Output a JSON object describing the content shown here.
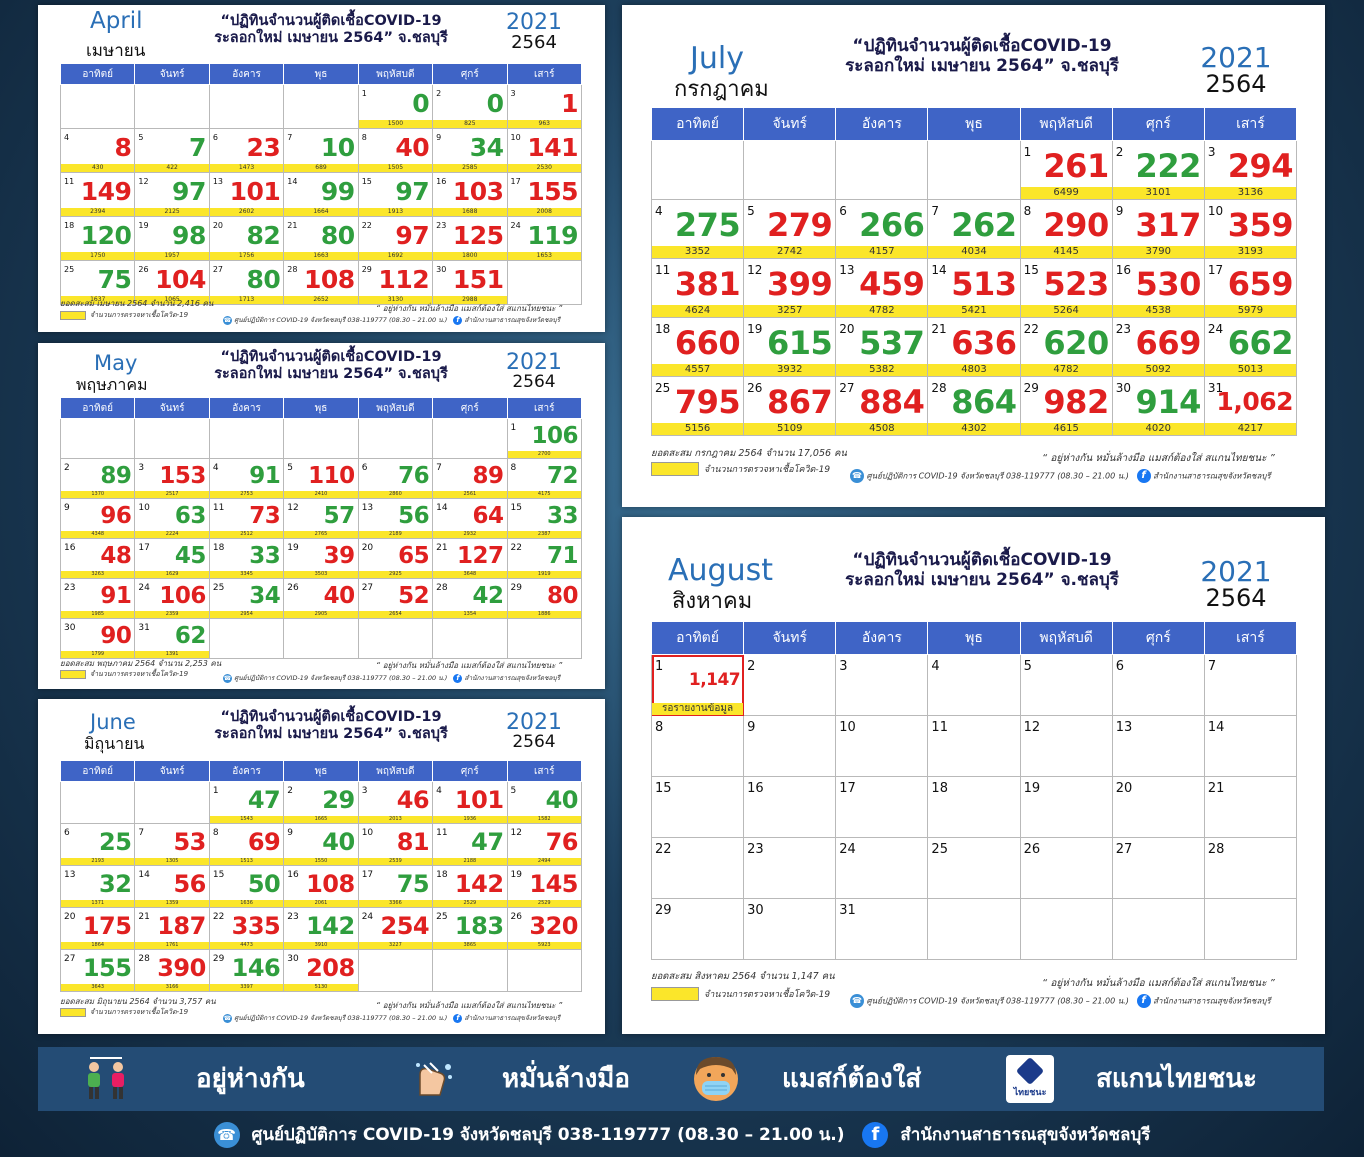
{
  "headings": {
    "title_line1": "“ปฏิทินจำนวนผู้ติดเชื้อCOVID-19",
    "title_line2": "ระลอกใหม่ เมษายน 2564” จ.ชลบุรี",
    "year_ad": "2021",
    "year_be": "2564"
  },
  "weekdays": [
    "อาทิตย์",
    "จันทร์",
    "อังคาร",
    "พุธ",
    "พฤหัสบดี",
    "ศุกร์",
    "เสาร์"
  ],
  "footer": {
    "slogan": "“ อยู่ห่างกัน หมั่นล้างมือ แมสก์ต้องใส่ สแกนไทยชนะ ”",
    "legend_label": "จำนวนการตรวจหาเชื้อโควิด-19",
    "center_label": "ศูนย์ปฏิบัติการ COVID-19 จังหวัดชลบุรี 038-119777 (08.30 – 21.00 น.)",
    "facebook_label": "สำนักงานสาธารณสุขจังหวัดชลบุรี"
  },
  "months": [
    {
      "id": "april",
      "en": "April",
      "th": "เมษายน",
      "summary": "ยอดสะสม เมษายน 2564 จำนวน 2,416 คน",
      "lead": 4,
      "days": [
        [
          "0",
          "1500",
          "g"
        ],
        [
          "0",
          "825",
          "g"
        ],
        [
          "1",
          "963",
          "r"
        ],
        [
          "8",
          "430",
          "r"
        ],
        [
          "7",
          "422",
          "g"
        ],
        [
          "23",
          "1473",
          "r"
        ],
        [
          "10",
          "689",
          "g"
        ],
        [
          "40",
          "1505",
          "r"
        ],
        [
          "34",
          "2585",
          "g"
        ],
        [
          "141",
          "2530",
          "r"
        ],
        [
          "149",
          "2394",
          "r"
        ],
        [
          "97",
          "2125",
          "g"
        ],
        [
          "101",
          "2602",
          "r"
        ],
        [
          "99",
          "1664",
          "g"
        ],
        [
          "97",
          "1913",
          "g"
        ],
        [
          "103",
          "1688",
          "r"
        ],
        [
          "155",
          "2008",
          "r"
        ],
        [
          "120",
          "1750",
          "g"
        ],
        [
          "98",
          "1957",
          "g"
        ],
        [
          "82",
          "1756",
          "g"
        ],
        [
          "80",
          "1663",
          "g"
        ],
        [
          "97",
          "1692",
          "r"
        ],
        [
          "125",
          "1800",
          "r"
        ],
        [
          "119",
          "1653",
          "g"
        ],
        [
          "75",
          "1637",
          "g"
        ],
        [
          "104",
          "1065",
          "r"
        ],
        [
          "80",
          "1713",
          "g"
        ],
        [
          "108",
          "2652",
          "r"
        ],
        [
          "112",
          "3130",
          "r"
        ],
        [
          "151",
          "2988",
          "r"
        ]
      ]
    },
    {
      "id": "may",
      "en": "May",
      "th": "พฤษภาคม",
      "summary": "ยอดสะสม พฤษภาคม 2564 จำนวน 2,253 คน",
      "lead": 6,
      "days": [
        [
          "106",
          "2700",
          "g"
        ],
        [
          "89",
          "1370",
          "g"
        ],
        [
          "153",
          "2517",
          "r"
        ],
        [
          "91",
          "2753",
          "g"
        ],
        [
          "110",
          "2410",
          "r"
        ],
        [
          "76",
          "2860",
          "g"
        ],
        [
          "89",
          "2561",
          "r"
        ],
        [
          "72",
          "4175",
          "g"
        ],
        [
          "96",
          "4348",
          "r"
        ],
        [
          "63",
          "2224",
          "g"
        ],
        [
          "73",
          "2512",
          "r"
        ],
        [
          "57",
          "2765",
          "g"
        ],
        [
          "56",
          "2189",
          "g"
        ],
        [
          "64",
          "2932",
          "r"
        ],
        [
          "33",
          "2387",
          "g"
        ],
        [
          "48",
          "3263",
          "r"
        ],
        [
          "45",
          "1629",
          "g"
        ],
        [
          "33",
          "3345",
          "g"
        ],
        [
          "39",
          "3503",
          "r"
        ],
        [
          "65",
          "2925",
          "r"
        ],
        [
          "127",
          "3648",
          "r"
        ],
        [
          "71",
          "1919",
          "g"
        ],
        [
          "91",
          "1985",
          "r"
        ],
        [
          "106",
          "2359",
          "r"
        ],
        [
          "34",
          "2954",
          "g"
        ],
        [
          "40",
          "2905",
          "r"
        ],
        [
          "52",
          "2654",
          "r"
        ],
        [
          "42",
          "1354",
          "g"
        ],
        [
          "80",
          "1886",
          "r"
        ],
        [
          "90",
          "1799",
          "r"
        ],
        [
          "62",
          "1391",
          "g"
        ]
      ]
    },
    {
      "id": "june",
      "en": "June",
      "th": "มิถุนายน",
      "summary": "ยอดสะสม มิถุนายน 2564 จำนวน 3,757 คน",
      "lead": 2,
      "days": [
        [
          "47",
          "1543",
          "g"
        ],
        [
          "29",
          "1665",
          "g"
        ],
        [
          "46",
          "2013",
          "r"
        ],
        [
          "101",
          "1936",
          "r"
        ],
        [
          "40",
          "1582",
          "g"
        ],
        [
          "25",
          "2193",
          "g"
        ],
        [
          "53",
          "1305",
          "r"
        ],
        [
          "69",
          "1513",
          "r"
        ],
        [
          "40",
          "1550",
          "g"
        ],
        [
          "81",
          "2539",
          "r"
        ],
        [
          "47",
          "2188",
          "g"
        ],
        [
          "76",
          "2494",
          "r"
        ],
        [
          "32",
          "1371",
          "g"
        ],
        [
          "56",
          "1359",
          "r"
        ],
        [
          "50",
          "1636",
          "g"
        ],
        [
          "108",
          "2061",
          "r"
        ],
        [
          "75",
          "3366",
          "g"
        ],
        [
          "142",
          "2529",
          "r"
        ],
        [
          "145",
          "2529",
          "r"
        ],
        [
          "175",
          "1864",
          "r"
        ],
        [
          "187",
          "1761",
          "r"
        ],
        [
          "335",
          "4473",
          "r"
        ],
        [
          "142",
          "3910",
          "g"
        ],
        [
          "254",
          "3227",
          "r"
        ],
        [
          "183",
          "3865",
          "g"
        ],
        [
          "320",
          "5923",
          "r"
        ],
        [
          "155",
          "3643",
          "g"
        ],
        [
          "390",
          "3166",
          "r"
        ],
        [
          "146",
          "3397",
          "g"
        ],
        [
          "208",
          "5130",
          "r"
        ]
      ]
    },
    {
      "id": "july",
      "en": "July",
      "th": "กรกฎาคม",
      "summary": "ยอดสะสม กรกฎาคม 2564 จำนวน 17,056 คน",
      "lead": 4,
      "days": [
        [
          "261",
          "6499",
          "r"
        ],
        [
          "222",
          "3101",
          "g"
        ],
        [
          "294",
          "3136",
          "r"
        ],
        [
          "275",
          "3352",
          "g"
        ],
        [
          "279",
          "2742",
          "r"
        ],
        [
          "266",
          "4157",
          "g"
        ],
        [
          "262",
          "4034",
          "g"
        ],
        [
          "290",
          "4145",
          "r"
        ],
        [
          "317",
          "3790",
          "r"
        ],
        [
          "359",
          "3193",
          "r"
        ],
        [
          "381",
          "4624",
          "r"
        ],
        [
          "399",
          "3257",
          "r"
        ],
        [
          "459",
          "4782",
          "r"
        ],
        [
          "513",
          "5421",
          "r"
        ],
        [
          "523",
          "5264",
          "r"
        ],
        [
          "530",
          "4538",
          "r"
        ],
        [
          "659",
          "5979",
          "r"
        ],
        [
          "660",
          "4557",
          "r"
        ],
        [
          "615",
          "3932",
          "g"
        ],
        [
          "537",
          "5382",
          "g"
        ],
        [
          "636",
          "4803",
          "r"
        ],
        [
          "620",
          "4782",
          "g"
        ],
        [
          "669",
          "5092",
          "r"
        ],
        [
          "662",
          "5013",
          "g"
        ],
        [
          "795",
          "5156",
          "r"
        ],
        [
          "867",
          "5109",
          "r"
        ],
        [
          "884",
          "4508",
          "r"
        ],
        [
          "864",
          "4302",
          "g"
        ],
        [
          "982",
          "4615",
          "r"
        ],
        [
          "914",
          "4020",
          "g"
        ],
        [
          "1,062",
          "4217",
          "r"
        ]
      ]
    },
    {
      "id": "august",
      "en": "August",
      "th": "สิงหาคม",
      "summary": "ยอดสะสม สิงหาคม 2564 จำนวน 1,147 คน",
      "lead": 0,
      "pending_label": "รอรายงานข้อมูล",
      "days": [
        [
          "1,147",
          "",
          "r"
        ]
      ]
    }
  ],
  "campaign": {
    "items": [
      "อยู่ห่างกัน",
      "หมั่นล้างมือ",
      "แมสก์ต้องใส่",
      "สแกนไทยชนะ"
    ],
    "thaichana_label": "ไทยชนะ",
    "contact": "ศูนย์ปฏิบัติการ COVID-19 จังหวัดชลบุรี 038-119777 (08.30 – 21.00 น.)",
    "facebook": "สำนักงานสาธารณสุขจังหวัดชลบุรี"
  },
  "colors": {
    "header_blue": "#3f64c6",
    "test_bar": "#fbe62a",
    "increase_red": "#e02020",
    "decrease_green": "#2f9e3e",
    "banner": "#244c75"
  }
}
